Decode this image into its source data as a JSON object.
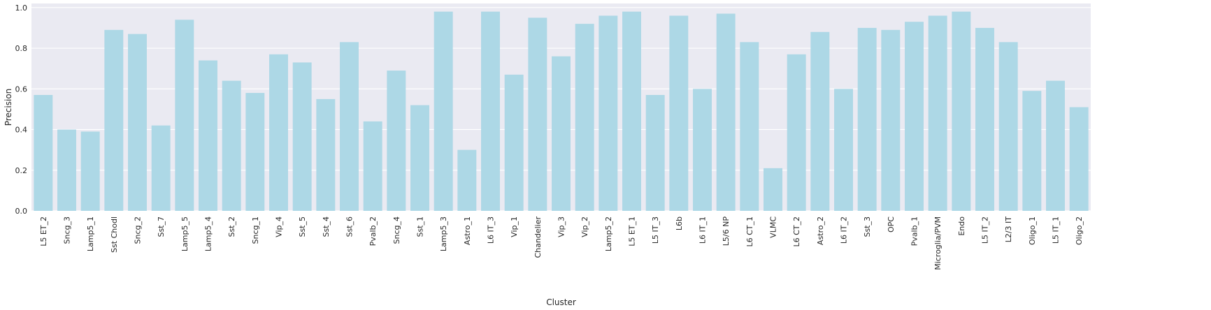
{
  "chart_data": {
    "type": "bar",
    "title": "",
    "xlabel": "Cluster",
    "ylabel": "Precision",
    "ylim": [
      0,
      1.02
    ],
    "yticks": [
      0.0,
      0.2,
      0.4,
      0.6,
      0.8,
      1.0
    ],
    "ytick_labels": [
      "0.0",
      "0.2",
      "0.4",
      "0.6",
      "0.8",
      "1.0"
    ],
    "grid": true,
    "bar_color": "#add8e6",
    "background_color": "#eaeaf2",
    "categories": [
      "L5 ET_2",
      "Sncg_3",
      "Lamp5_1",
      "Sst Chodl",
      "Sncg_2",
      "Sst_7",
      "Lamp5_5",
      "Lamp5_4",
      "Sst_2",
      "Sncg_1",
      "Vip_4",
      "Sst_5",
      "Sst_4",
      "Sst_6",
      "Pvalb_2",
      "Sncg_4",
      "Sst_1",
      "Lamp5_3",
      "Astro_1",
      "L6 IT_3",
      "Vip_1",
      "Chandelier",
      "Vip_3",
      "Vip_2",
      "Lamp5_2",
      "L5 ET_1",
      "L5 IT_3",
      "L6b",
      "L6 IT_1",
      "L5/6 NP",
      "L6 CT_1",
      "VLMC",
      "L6 CT_2",
      "Astro_2",
      "L6 IT_2",
      "Sst_3",
      "OPC",
      "Pvalb_1",
      "Microglia/PVM",
      "Endo",
      "L5 IT_2",
      "L2/3 IT",
      "Oligo_1",
      "L5 IT_1",
      "Oligo_2"
    ],
    "values": [
      0.57,
      0.4,
      0.39,
      0.89,
      0.87,
      0.42,
      0.94,
      0.74,
      0.64,
      0.58,
      0.77,
      0.73,
      0.55,
      0.83,
      0.44,
      0.69,
      0.52,
      0.98,
      0.3,
      0.98,
      0.67,
      0.95,
      0.76,
      0.92,
      0.96,
      0.98,
      0.57,
      0.96,
      0.6,
      0.97,
      0.83,
      0.21,
      0.77,
      0.88,
      0.6,
      0.9,
      0.89,
      0.93,
      0.96,
      0.98,
      0.9,
      0.83,
      0.59,
      0.64,
      0.51
    ]
  }
}
